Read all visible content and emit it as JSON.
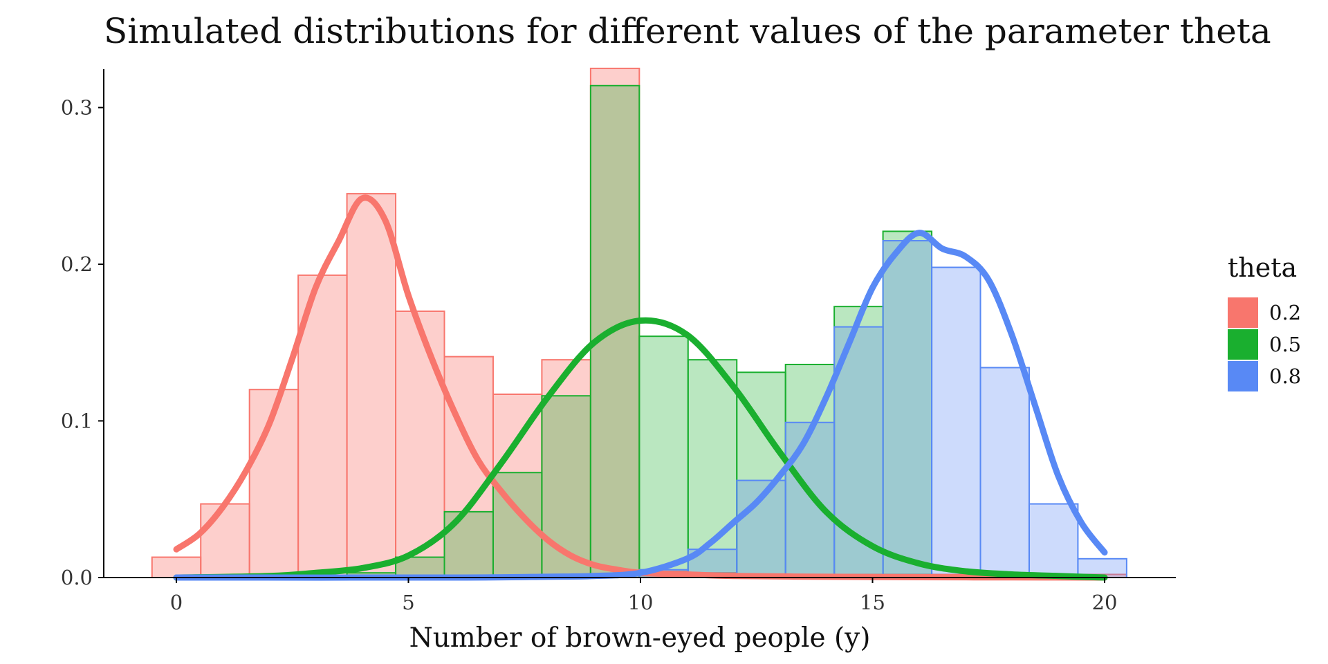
{
  "chart_data": {
    "type": "bar",
    "title": "Simulated distributions for different values of the parameter theta",
    "xlabel": "Number of brown-eyed people (y)",
    "ylabel": "",
    "xlim": [
      -1.5,
      21.5
    ],
    "ylim": [
      0,
      0.325
    ],
    "x_ticks": [
      0,
      5,
      10,
      15,
      20
    ],
    "y_ticks": [
      0.0,
      0.1,
      0.2,
      0.3
    ],
    "y_tick_labels": [
      "0.0",
      "0.1",
      "0.2",
      "0.3"
    ],
    "grid": false,
    "legend": {
      "title": "theta",
      "position": "right"
    },
    "bins": {
      "width": 1.05,
      "centers": [
        0.0,
        1.05,
        2.1,
        3.15,
        4.2,
        5.25,
        6.3,
        7.35,
        8.4,
        9.45,
        10.5,
        11.55,
        12.6,
        13.65,
        14.7,
        15.75,
        16.8,
        17.85,
        18.9,
        19.95
      ]
    },
    "series": [
      {
        "name": "0.2",
        "color": "#F8766D",
        "fill_opacity": 0.35,
        "counts": [
          0.013,
          0.047,
          0.12,
          0.193,
          0.245,
          0.17,
          0.141,
          0.117,
          0.139,
          0.326,
          0.004,
          0.003,
          0.002,
          0.002,
          0.002,
          0.002,
          0.002,
          0.002,
          0.002,
          0.002
        ],
        "density": [
          [
            0,
            0.018
          ],
          [
            0.5,
            0.028
          ],
          [
            1,
            0.045
          ],
          [
            1.5,
            0.068
          ],
          [
            2,
            0.098
          ],
          [
            2.5,
            0.14
          ],
          [
            3,
            0.185
          ],
          [
            3.5,
            0.215
          ],
          [
            4,
            0.242
          ],
          [
            4.5,
            0.228
          ],
          [
            5,
            0.18
          ],
          [
            5.5,
            0.14
          ],
          [
            6,
            0.105
          ],
          [
            6.5,
            0.075
          ],
          [
            7,
            0.055
          ],
          [
            7.5,
            0.038
          ],
          [
            8,
            0.024
          ],
          [
            8.5,
            0.014
          ],
          [
            9,
            0.008
          ],
          [
            9.5,
            0.005
          ],
          [
            10,
            0.003
          ],
          [
            11,
            0.002
          ],
          [
            12,
            0.001
          ],
          [
            14,
            0.0005
          ],
          [
            16,
            0.0002
          ],
          [
            18,
            0.0001
          ],
          [
            20,
            0.0
          ]
        ]
      },
      {
        "name": "0.5",
        "color": "#1AAF2F",
        "fill_opacity": 0.3,
        "counts": [
          0.0,
          0.0,
          0.0,
          0.0,
          0.003,
          0.013,
          0.042,
          0.067,
          0.116,
          0.314,
          0.154,
          0.139,
          0.131,
          0.136,
          0.173,
          0.221,
          0.0,
          0.0,
          0.0,
          0.0
        ],
        "density": [
          [
            0,
            0.0
          ],
          [
            2,
            0.001
          ],
          [
            3,
            0.003
          ],
          [
            4,
            0.006
          ],
          [
            5,
            0.014
          ],
          [
            6,
            0.035
          ],
          [
            7,
            0.073
          ],
          [
            8,
            0.115
          ],
          [
            9,
            0.15
          ],
          [
            10,
            0.164
          ],
          [
            11,
            0.155
          ],
          [
            12,
            0.122
          ],
          [
            13,
            0.08
          ],
          [
            14,
            0.042
          ],
          [
            15,
            0.02
          ],
          [
            16,
            0.009
          ],
          [
            17,
            0.004
          ],
          [
            18,
            0.002
          ],
          [
            19,
            0.001
          ],
          [
            20,
            0.0
          ]
        ]
      },
      {
        "name": "0.8",
        "color": "#5889F5",
        "fill_opacity": 0.3,
        "counts": [
          0.0,
          0.0,
          0.0,
          0.0,
          0.0,
          0.0,
          0.0,
          0.0,
          0.0,
          0.0,
          0.005,
          0.018,
          0.062,
          0.099,
          0.16,
          0.215,
          0.198,
          0.134,
          0.047,
          0.012
        ],
        "density": [
          [
            0,
            0.0
          ],
          [
            6,
            0.0
          ],
          [
            8,
            0.0005
          ],
          [
            9,
            0.001
          ],
          [
            10,
            0.003
          ],
          [
            11,
            0.012
          ],
          [
            11.5,
            0.022
          ],
          [
            12,
            0.035
          ],
          [
            12.5,
            0.048
          ],
          [
            13,
            0.065
          ],
          [
            13.5,
            0.085
          ],
          [
            14,
            0.115
          ],
          [
            14.5,
            0.15
          ],
          [
            15,
            0.185
          ],
          [
            15.5,
            0.207
          ],
          [
            16,
            0.22
          ],
          [
            16.5,
            0.21
          ],
          [
            17,
            0.205
          ],
          [
            17.5,
            0.19
          ],
          [
            18,
            0.155
          ],
          [
            18.5,
            0.11
          ],
          [
            19,
            0.065
          ],
          [
            19.5,
            0.035
          ],
          [
            20,
            0.016
          ]
        ]
      }
    ]
  }
}
